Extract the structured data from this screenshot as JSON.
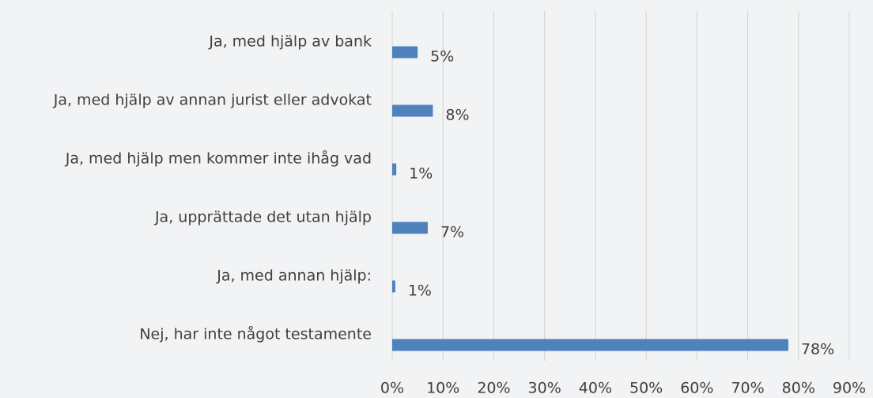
{
  "chart_data": {
    "type": "hbar",
    "categories": [
      "Ja, med hjälp av bank",
      "Ja, med hjälp av annan jurist eller advokat",
      "Ja, med hjälp men kommer inte ihåg vad",
      "Ja, upprättade det utan hjälp",
      "Ja, med annan hjälp:",
      "Nej, har inte något testamente"
    ],
    "values": [
      5,
      8,
      0.8,
      7,
      0.6,
      78
    ],
    "value_labels": [
      "5%",
      "8%",
      "1%",
      "7%",
      "1%",
      "78%"
    ],
    "color": "#4f81bd",
    "xlim": [
      0,
      90
    ],
    "xticks": [
      {
        "value": 0,
        "label": "0%"
      },
      {
        "value": 10,
        "label": "10%"
      },
      {
        "value": 20,
        "label": "20%"
      },
      {
        "value": 30,
        "label": "30%"
      },
      {
        "value": 40,
        "label": "40%"
      },
      {
        "value": 50,
        "label": "50%"
      },
      {
        "value": 60,
        "label": "60%"
      },
      {
        "value": 70,
        "label": "70%"
      },
      {
        "value": 80,
        "label": "80%"
      },
      {
        "value": 90,
        "label": "90%"
      }
    ],
    "grid": true
  }
}
